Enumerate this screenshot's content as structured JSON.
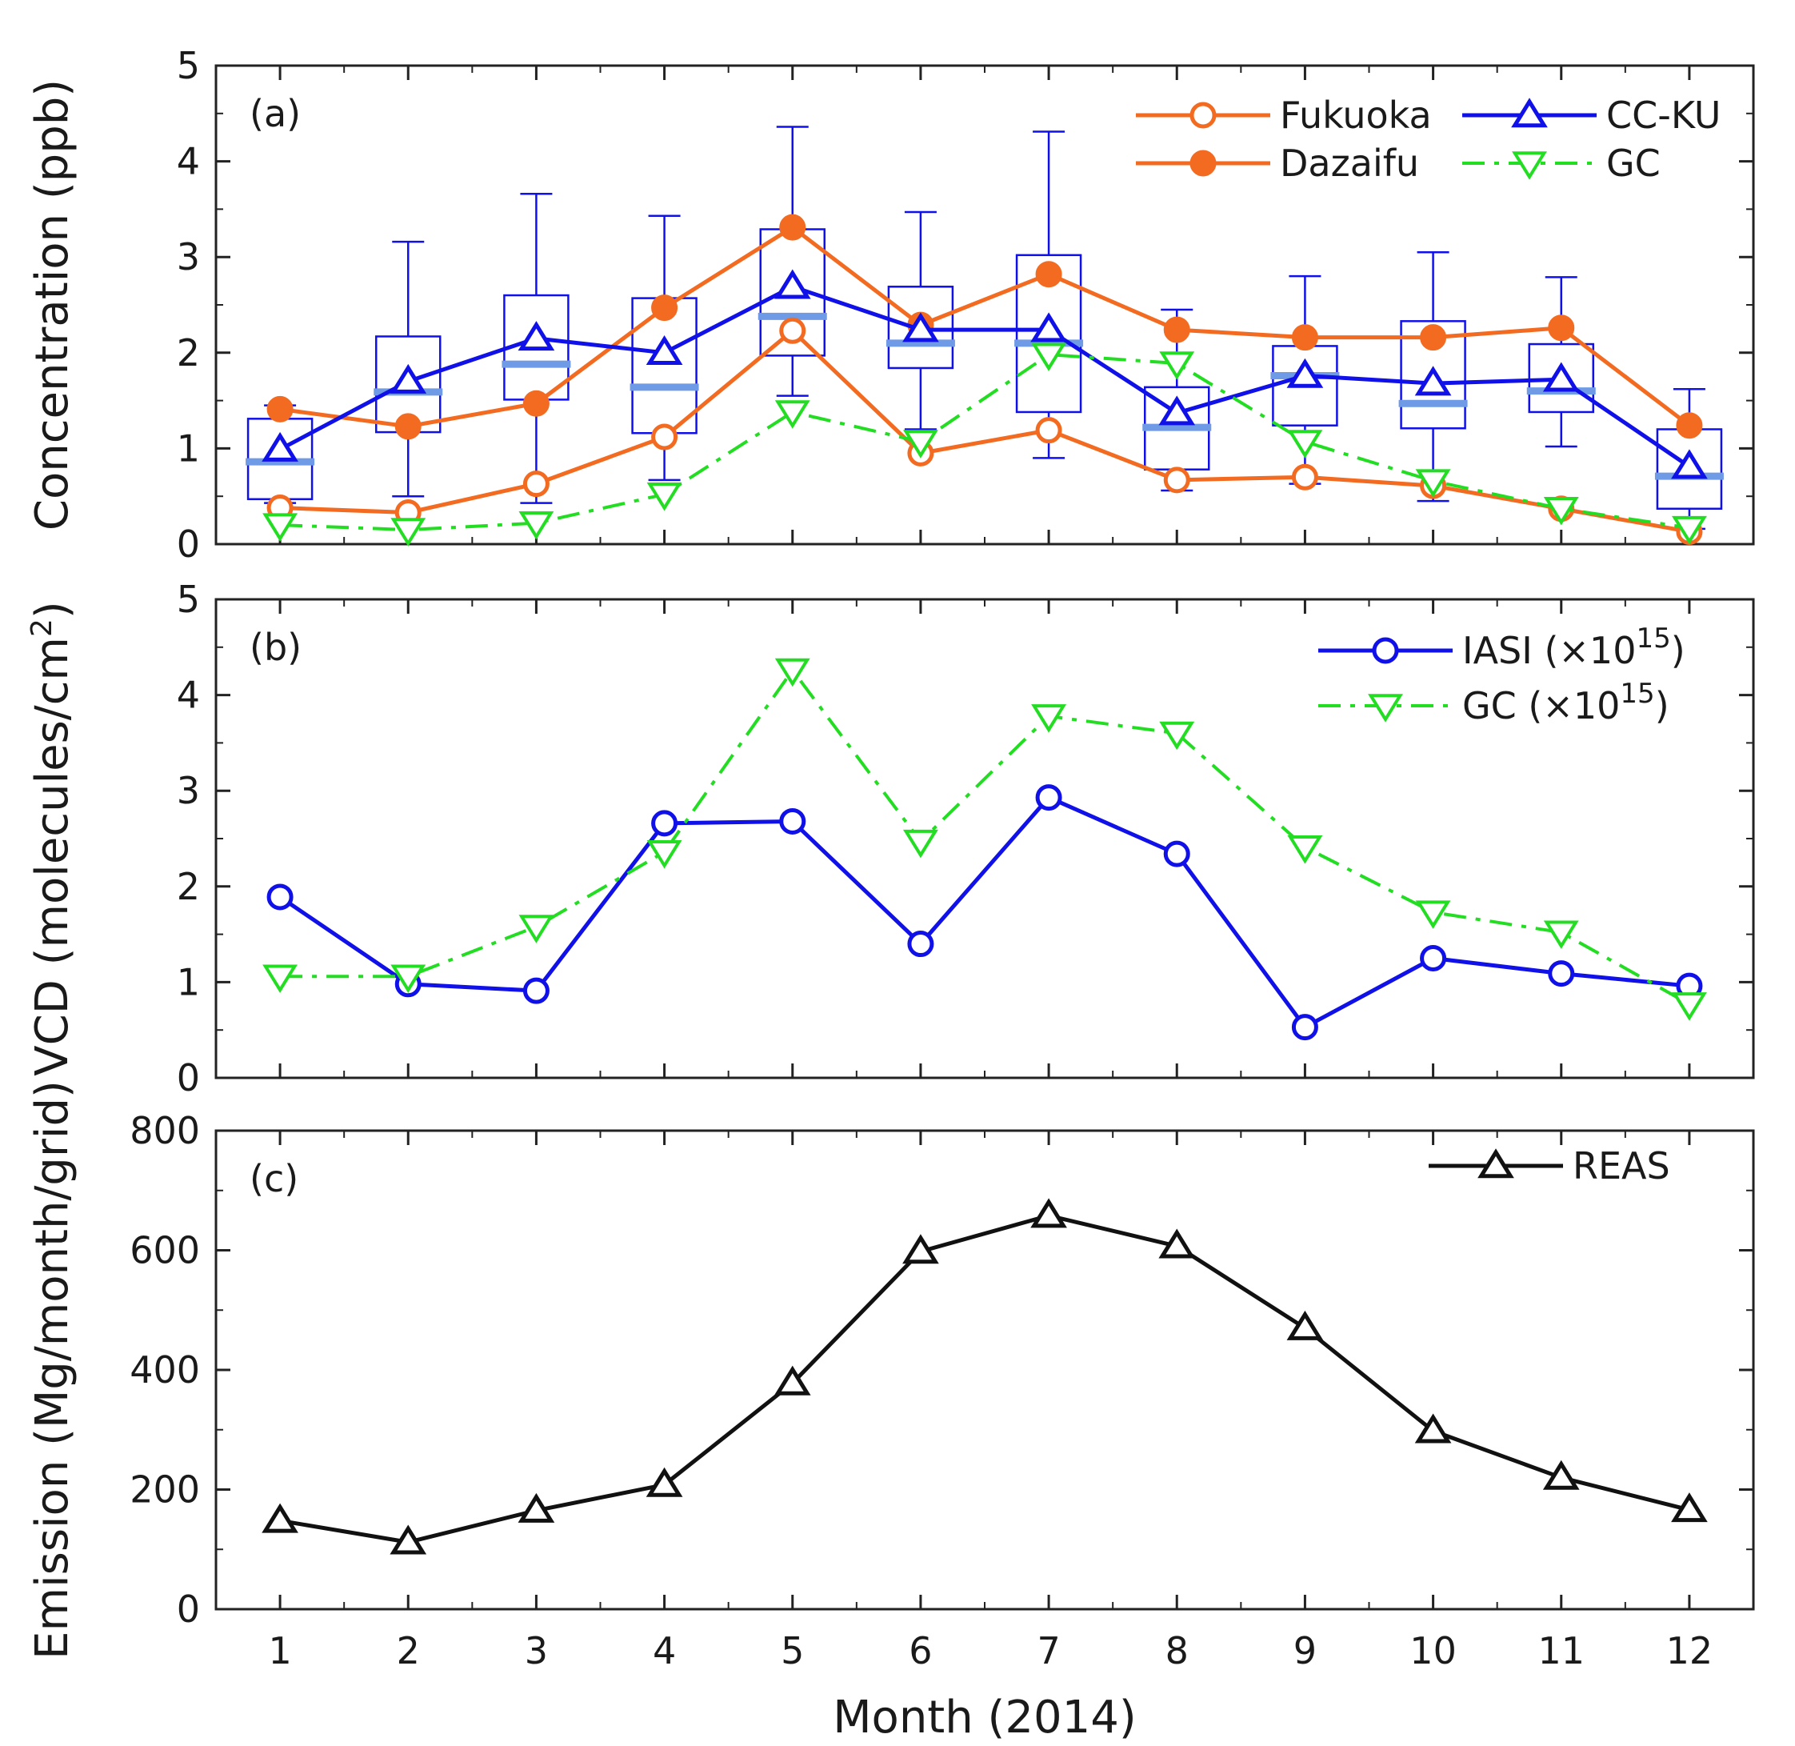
{
  "figure": {
    "xlabel": "Month (2014)"
  },
  "chart_data": [
    {
      "type": "line",
      "panel_label": "(a)",
      "ylabel": "Concentration (ppb)",
      "xlabel": "Month (2014)",
      "x": [
        1,
        2,
        3,
        4,
        5,
        6,
        7,
        8,
        9,
        10,
        11,
        12
      ],
      "xlim": [
        0.5,
        12.5
      ],
      "ylim": [
        0,
        5
      ],
      "yticks": [
        0,
        1,
        2,
        3,
        4,
        5
      ],
      "legend_position": "top-right",
      "series": [
        {
          "name": "Fukuoka",
          "color": "#f26b21",
          "marker": "circle-open",
          "dash": "solid",
          "values": [
            0.38,
            0.33,
            0.63,
            1.12,
            2.23,
            0.95,
            1.19,
            0.67,
            0.7,
            0.61,
            0.37,
            0.13
          ]
        },
        {
          "name": "Dazaifu",
          "color": "#f26b21",
          "marker": "circle-filled",
          "dash": "solid",
          "values": [
            1.41,
            1.23,
            1.47,
            2.47,
            3.31,
            2.29,
            2.82,
            2.24,
            2.16,
            2.16,
            2.26,
            1.24
          ]
        },
        {
          "name": "CC-KU",
          "color": "#1010e8",
          "marker": "triangle-up",
          "dash": "solid",
          "values": [
            0.99,
            1.7,
            2.15,
            2.0,
            2.69,
            2.24,
            2.24,
            1.37,
            1.76,
            1.68,
            1.72,
            0.81
          ]
        },
        {
          "name": "GC",
          "color": "#22dd22",
          "marker": "triangle-down",
          "dash": "dashdot",
          "values": [
            0.2,
            0.15,
            0.22,
            0.52,
            1.38,
            1.07,
            1.98,
            1.89,
            1.07,
            0.66,
            0.37,
            0.17
          ]
        }
      ],
      "boxplot": {
        "series": "CC-KU",
        "whisker_low": [
          0.43,
          0.5,
          0.43,
          0.67,
          1.55,
          1.2,
          0.9,
          0.56,
          0.63,
          0.45,
          1.02,
          0.16
        ],
        "q1": [
          0.47,
          1.17,
          1.51,
          1.16,
          1.97,
          1.84,
          1.38,
          0.78,
          1.24,
          1.21,
          1.38,
          0.37
        ],
        "median": [
          0.86,
          1.59,
          1.88,
          1.64,
          2.38,
          2.1,
          2.1,
          1.22,
          1.76,
          1.47,
          1.6,
          0.71
        ],
        "q3": [
          1.31,
          2.17,
          2.6,
          2.57,
          3.29,
          2.69,
          3.02,
          1.64,
          2.07,
          2.33,
          2.09,
          1.2
        ],
        "whisker_high": [
          1.45,
          3.16,
          3.66,
          3.43,
          4.36,
          3.47,
          4.31,
          2.45,
          2.8,
          3.05,
          2.79,
          1.62
        ]
      }
    },
    {
      "type": "line",
      "panel_label": "(b)",
      "ylabel": "VCD (molecules/cm",
      "ylabel_sup": "2",
      "ylabel_end": ")",
      "x": [
        1,
        2,
        3,
        4,
        5,
        6,
        7,
        8,
        9,
        10,
        11,
        12
      ],
      "xlim": [
        0.5,
        12.5
      ],
      "ylim": [
        0,
        5
      ],
      "yticks": [
        0,
        1,
        2,
        3,
        4,
        5
      ],
      "legend_position": "top-right",
      "series": [
        {
          "name": "IASI",
          "legend_suffix": "(×10",
          "legend_sup": "15",
          "legend_end": ")",
          "color": "#1010e8",
          "marker": "circle-open",
          "dash": "solid",
          "values": [
            1.89,
            0.98,
            0.91,
            2.66,
            2.68,
            1.4,
            2.93,
            2.34,
            0.53,
            1.25,
            1.09,
            0.96
          ]
        },
        {
          "name": "GC",
          "legend_suffix": "(×10",
          "legend_sup": "15",
          "legend_end": ")",
          "color": "#22dd22",
          "marker": "triangle-down",
          "dash": "dashdot",
          "values": [
            1.06,
            1.06,
            1.58,
            2.36,
            4.26,
            2.47,
            3.78,
            3.6,
            2.41,
            1.73,
            1.52,
            0.77
          ]
        }
      ]
    },
    {
      "type": "line",
      "panel_label": "(c)",
      "ylabel": "Emission (Mg/month/grid)",
      "x": [
        1,
        2,
        3,
        4,
        5,
        6,
        7,
        8,
        9,
        10,
        11,
        12
      ],
      "xlim": [
        0.5,
        12.5
      ],
      "ylim": [
        0,
        800
      ],
      "yticks": [
        0,
        200,
        400,
        600,
        800
      ],
      "xticks": [
        1,
        2,
        3,
        4,
        5,
        6,
        7,
        8,
        9,
        10,
        11,
        12
      ],
      "legend_position": "top-right",
      "series": [
        {
          "name": "REAS",
          "color": "#111111",
          "marker": "triangle-up",
          "dash": "solid",
          "values": [
            148,
            112,
            165,
            208,
            378,
            598,
            658,
            607,
            470,
            298,
            220,
            166
          ]
        }
      ]
    }
  ]
}
